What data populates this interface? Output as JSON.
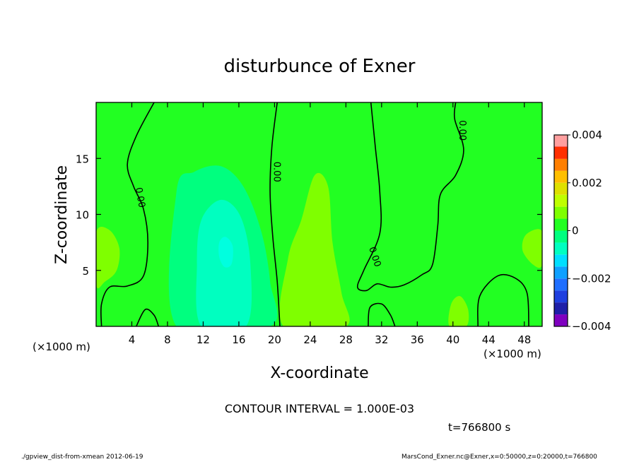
{
  "chart_data": {
    "type": "contour",
    "title": "disturbunce of Exner",
    "xlabel": "X-coordinate",
    "ylabel": "Z-coordinate",
    "x_unit": "(×1000 m)",
    "z_unit": "(×1000 m)",
    "xlim": [
      0,
      50
    ],
    "ylim": [
      0,
      20
    ],
    "x_ticks": [
      4,
      8,
      12,
      16,
      20,
      24,
      28,
      32,
      36,
      40,
      44,
      48
    ],
    "y_ticks": [
      5,
      10,
      15
    ],
    "contour_interval_text": "CONTOUR INTERVAL = 1.000E-03",
    "time_text": "t=766800 s",
    "contour_label": "0.00",
    "colorbar": {
      "levels": [
        -0.004,
        -0.0035,
        -0.003,
        -0.0025,
        -0.002,
        -0.0015,
        -0.001,
        -0.0005,
        0,
        0.0005,
        0.001,
        0.0015,
        0.002,
        0.0025,
        0.003,
        0.0035,
        0.004
      ],
      "tick_values": [
        0.004,
        0.002,
        0,
        -0.002,
        -0.004
      ],
      "tick_labels": [
        "0.004",
        "0.002",
        "0",
        "−0.002",
        "−0.004"
      ],
      "colors": [
        "#7f00bf",
        "#1f1fa8",
        "#1f3fdf",
        "#1f6fff",
        "#0fa0ff",
        "#00dfff",
        "#00ffc0",
        "#00ff7f",
        "#22ff22",
        "#7fff00",
        "#bfff00",
        "#dfe000",
        "#ffbf00",
        "#ff7f00",
        "#ff2f00",
        "#ff5f5f",
        "#ff9f9f"
      ]
    },
    "background_color": "#22ff22",
    "regions": [
      {
        "level": -0.001,
        "color": "#00ff7f",
        "points": [
          [
            9,
            0
          ],
          [
            9,
            12
          ],
          [
            11,
            13.8
          ],
          [
            14,
            14.3
          ],
          [
            16.5,
            12.5
          ],
          [
            18.5,
            8.5
          ],
          [
            19.5,
            4
          ],
          [
            19.5,
            0
          ]
        ]
      },
      {
        "level": -0.002,
        "color": "#00ffc0",
        "points": [
          [
            11.8,
            0
          ],
          [
            11.3,
            5.5
          ],
          [
            11.8,
            9.5
          ],
          [
            14,
            11.3
          ],
          [
            16.2,
            9.8
          ],
          [
            17.3,
            5.5
          ],
          [
            16.8,
            0
          ]
        ]
      },
      {
        "level": -0.003,
        "color": "#00ffdf",
        "points": [
          [
            13.8,
            7.5
          ],
          [
            14.5,
            8
          ],
          [
            15.3,
            7.2
          ],
          [
            15.2,
            5.6
          ],
          [
            14.4,
            5.3
          ],
          [
            13.8,
            6.2
          ]
        ]
      },
      {
        "level": 0.0005,
        "color": "#7fff00",
        "points": [
          [
            21,
            0
          ],
          [
            21.5,
            6
          ],
          [
            23,
            9.5
          ],
          [
            24.5,
            13.5
          ],
          [
            26,
            12.5
          ],
          [
            26.5,
            7.5
          ],
          [
            27.5,
            3
          ],
          [
            28,
            0
          ]
        ]
      },
      {
        "level": 0.0005,
        "color": "#7fff00",
        "points": [
          [
            0,
            3.7
          ],
          [
            0,
            8.4
          ],
          [
            1.5,
            8.6
          ],
          [
            2.6,
            7
          ],
          [
            2.3,
            5
          ],
          [
            1,
            4
          ]
        ]
      },
      {
        "level": 0.0005,
        "color": "#7fff00",
        "points": [
          [
            39.6,
            0
          ],
          [
            39.8,
            2
          ],
          [
            40.8,
            2.7
          ],
          [
            41.7,
            1.5
          ],
          [
            41.5,
            0
          ]
        ]
      },
      {
        "level": 0.0005,
        "color": "#7fff00",
        "points": [
          [
            49,
            5.5
          ],
          [
            47.8,
            6.8
          ],
          [
            48.2,
            8.2
          ],
          [
            50,
            8.5
          ],
          [
            50,
            5.5
          ]
        ]
      }
    ],
    "contours": [
      {
        "level": 0,
        "points": [
          [
            6.5,
            20
          ],
          [
            4.5,
            17
          ],
          [
            3.5,
            14.5
          ],
          [
            4.2,
            12.5
          ],
          [
            5.3,
            10.5
          ],
          [
            5.8,
            7.5
          ],
          [
            5.3,
            4.5
          ],
          [
            3.5,
            3.6
          ],
          [
            1.5,
            3.5
          ],
          [
            0.6,
            2
          ],
          [
            0.6,
            0
          ]
        ]
      },
      {
        "level": 0,
        "points": [
          [
            4.5,
            0
          ],
          [
            5.5,
            1.5
          ],
          [
            6.5,
            1
          ],
          [
            7,
            0
          ]
        ]
      },
      {
        "level": 0,
        "points": [
          [
            20.3,
            20
          ],
          [
            19.7,
            16
          ],
          [
            19.5,
            12
          ],
          [
            19.8,
            8
          ],
          [
            20.3,
            4
          ],
          [
            20.6,
            0
          ]
        ]
      },
      {
        "level": 0,
        "points": [
          [
            30.8,
            20
          ],
          [
            31.3,
            16
          ],
          [
            31.8,
            12
          ],
          [
            31.8,
            8.3
          ],
          [
            30,
            5
          ],
          [
            29.3,
            3.5
          ],
          [
            30.3,
            3.2
          ],
          [
            31.5,
            3.8
          ],
          [
            33,
            3.5
          ],
          [
            34.5,
            3.7
          ],
          [
            36.5,
            4.6
          ],
          [
            37.7,
            5.5
          ],
          [
            38.3,
            9
          ],
          [
            38.6,
            11.8
          ],
          [
            40.3,
            13.5
          ],
          [
            41.2,
            15.8
          ],
          [
            40.2,
            18.5
          ],
          [
            40.3,
            20
          ]
        ]
      },
      {
        "level": 0,
        "points": [
          [
            30.5,
            0
          ],
          [
            30.7,
            1.7
          ],
          [
            32,
            2
          ],
          [
            33,
            1
          ],
          [
            33.5,
            0
          ]
        ]
      },
      {
        "level": 0,
        "points": [
          [
            42.8,
            0
          ],
          [
            43,
            2.7
          ],
          [
            45,
            4.5
          ],
          [
            47,
            4.3
          ],
          [
            48.3,
            3
          ],
          [
            48.5,
            0
          ]
        ]
      }
    ],
    "contour_labels": [
      {
        "x": 4.9,
        "y": 11.5,
        "angle": 80
      },
      {
        "x": 20.2,
        "y": 13.8,
        "angle": 90
      },
      {
        "x": 31.2,
        "y": 6.2,
        "angle": 72
      },
      {
        "x": 41.0,
        "y": 17.5,
        "angle": 90
      }
    ]
  },
  "footer": {
    "left": "./gpview_dist-from-xmean  2012-06-19",
    "right": "MarsCond_Exner.nc@Exner,x=0:50000,z=0:20000,t=766800"
  }
}
